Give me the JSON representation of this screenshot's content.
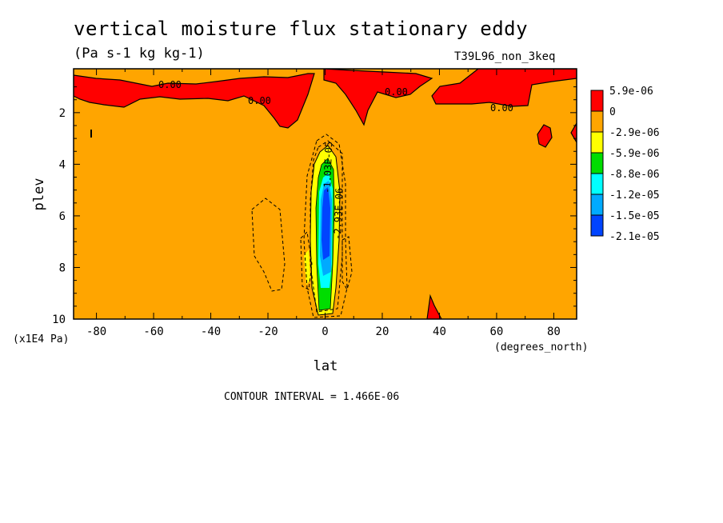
{
  "chart_data": {
    "type": "heatmap",
    "title": "vertical moisture flux stationary eddy",
    "subtitle": "(Pa s-1 kg kg-1)",
    "run_label": "T39L96_non_3keq",
    "xlabel": "lat",
    "xunits": "(degrees_north)",
    "ylabel": "plev",
    "yunits": "(x1E4 Pa)",
    "xlim": [
      -88,
      88
    ],
    "ylim": [
      10,
      0.3
    ],
    "y_inverted": true,
    "xticks": [
      -80,
      -60,
      -40,
      -20,
      0,
      20,
      40,
      60,
      80
    ],
    "yticks": [
      2,
      4,
      6,
      8,
      10
    ],
    "contour_interval_text": "CONTOUR INTERVAL = 1.466E-06",
    "contour_labels": [
      "0.00",
      "0.00",
      "0.00",
      "0.00",
      "-1.03E-05",
      "-2.93E-06"
    ],
    "colorbar": {
      "labels": [
        "5.9e-06",
        "0",
        "-2.9e-06",
        "-5.9e-06",
        "-8.8e-06",
        "-1.2e-05",
        "-1.5e-05",
        "-2.1e-05"
      ],
      "colors": [
        "#ff0000",
        "#ffa500",
        "#ffff00",
        "#00dd00",
        "#00ffff",
        "#00aaff",
        "#0044ff"
      ]
    },
    "background_color": "#ffa500",
    "regions": [
      {
        "range_index": 0,
        "description": "positive flux",
        "approx_lat": [
          -88,
          88
        ],
        "approx_plev": [
          0.3,
          2.4
        ]
      },
      {
        "range_index": 6,
        "description": "strongest negative core",
        "approx_lat": [
          -2,
          2
        ],
        "approx_plev": [
          3.8,
          8.6
        ]
      }
    ]
  }
}
